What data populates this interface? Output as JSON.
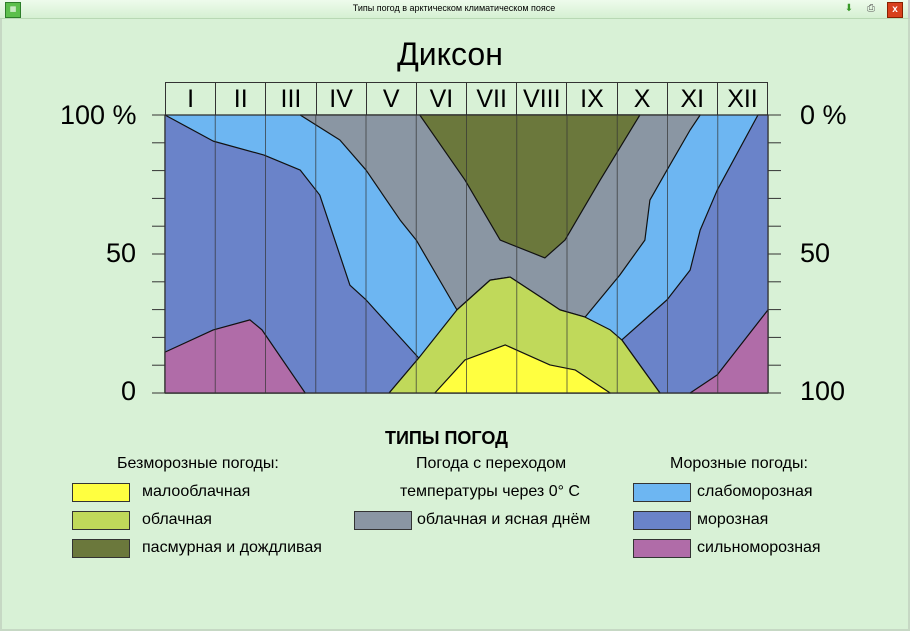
{
  "window": {
    "title": "Типы погод в арктическом климатическом поясе",
    "icons": [
      "app-icon",
      "download-icon",
      "print-icon",
      "close-icon"
    ],
    "close_label": "x"
  },
  "chart_data": {
    "type": "area",
    "title": "Диксон",
    "x_categories": [
      "I",
      "II",
      "III",
      "IV",
      "V",
      "VI",
      "VII",
      "VIII",
      "IX",
      "X",
      "XI",
      "XII"
    ],
    "left_axis": {
      "ticks": [
        "100 %",
        "50",
        "0"
      ],
      "range": [
        0,
        100
      ]
    },
    "right_axis": {
      "ticks": [
        "0 %",
        "50",
        "100"
      ],
      "range": [
        100,
        0
      ]
    },
    "x_range": [
      0,
      12
    ],
    "regions": [
      {
        "name": "слабоморозная",
        "color": "#6db6f2",
        "points": [
          [
            0,
            0
          ],
          [
            0,
            100
          ],
          [
            12,
            100
          ],
          [
            12,
            0
          ]
        ]
      },
      {
        "name": "морозная",
        "color": "#6a83c9",
        "points": [
          [
            0,
            100
          ],
          [
            0.96,
            90.6
          ],
          [
            1.97,
            85.6
          ],
          [
            2.69,
            80.2
          ],
          [
            3.08,
            71.2
          ],
          [
            3.38,
            55
          ],
          [
            3.68,
            38.8
          ],
          [
            4.0,
            33.5
          ],
          [
            5.05,
            12.6
          ],
          [
            4.46,
            0
          ],
          [
            0,
            0
          ]
        ]
      },
      {
        "name": "морозная",
        "color": "#6a83c9",
        "points": [
          [
            9.09,
            19.1
          ],
          [
            9.99,
            33.5
          ],
          [
            10.45,
            44.2
          ],
          [
            10.65,
            58.6
          ],
          [
            10.99,
            73
          ],
          [
            11.8,
            100
          ],
          [
            12,
            100
          ],
          [
            12,
            0
          ],
          [
            9.85,
            0
          ]
        ]
      },
      {
        "name": "облачная и ясная днём",
        "color": "#8a96a3",
        "points": [
          [
            2.69,
            100
          ],
          [
            10.65,
            100
          ],
          [
            10.45,
            94.6
          ],
          [
            9.99,
            80.2
          ],
          [
            9.65,
            69.4
          ],
          [
            9.55,
            55
          ],
          [
            9.05,
            42.4
          ],
          [
            8.36,
            27.3
          ],
          [
            7.86,
            29.9
          ],
          [
            7.56,
            33.5
          ],
          [
            6.87,
            41.7
          ],
          [
            6.47,
            40.6
          ],
          [
            5.81,
            29.9
          ],
          [
            5.0,
            55
          ],
          [
            4.68,
            62.2
          ],
          [
            4.0,
            80.2
          ],
          [
            3.48,
            91
          ]
        ]
      },
      {
        "name": "пасмурная и дождливая",
        "color": "#6b783c",
        "points": [
          [
            5.07,
            100
          ],
          [
            5.97,
            76.6
          ],
          [
            6.67,
            55
          ],
          [
            7.56,
            48.6
          ],
          [
            7.96,
            55
          ],
          [
            8.66,
            76.6
          ],
          [
            9.45,
            100
          ]
        ]
      },
      {
        "name": "облачная",
        "color": "#c0d95a",
        "points": [
          [
            4.46,
            0
          ],
          [
            5.05,
            12.6
          ],
          [
            5.81,
            29.9
          ],
          [
            6.47,
            40.6
          ],
          [
            6.87,
            41.7
          ],
          [
            7.56,
            33.5
          ],
          [
            7.86,
            29.9
          ],
          [
            8.36,
            27.3
          ],
          [
            8.86,
            22.7
          ],
          [
            9.09,
            19.1
          ],
          [
            9.85,
            0
          ]
        ]
      },
      {
        "name": "малооблачная",
        "color": "#ffff40",
        "points": [
          [
            5.37,
            0
          ],
          [
            5.97,
            11.9
          ],
          [
            6.77,
            17.3
          ],
          [
            7.66,
            10.1
          ],
          [
            8.16,
            8.3
          ],
          [
            8.86,
            0
          ]
        ]
      },
      {
        "name": "сильноморозная",
        "color": "#b06ca8",
        "points": [
          [
            0,
            0
          ],
          [
            0,
            14.7
          ],
          [
            0.96,
            22.7
          ],
          [
            1.69,
            26.3
          ],
          [
            1.93,
            22.7
          ],
          [
            2.79,
            0
          ]
        ]
      },
      {
        "name": "сильноморозная",
        "color": "#b06ca8",
        "points": [
          [
            10.45,
            0
          ],
          [
            10.99,
            6.5
          ],
          [
            12,
            29.9
          ],
          [
            12,
            0
          ]
        ]
      }
    ]
  },
  "legend": {
    "title": "ТИПЫ ПОГОД",
    "groups": [
      {
        "heading": "Безморозные погоды:",
        "items": [
          {
            "label": "малооблачная",
            "color": "#ffff40"
          },
          {
            "label": "облачная",
            "color": "#c0d95a"
          },
          {
            "label": "пасмурная и дождливая",
            "color": "#6b783c"
          }
        ]
      },
      {
        "heading_line1": "Погода с переходом",
        "heading_line2": "температуры через 0° С",
        "items": [
          {
            "label": "облачная и ясная днём",
            "color": "#8a96a3"
          }
        ]
      },
      {
        "heading": "Морозные погоды:",
        "items": [
          {
            "label": "слабоморозная",
            "color": "#6db6f2"
          },
          {
            "label": "морозная",
            "color": "#6a83c9"
          },
          {
            "label": "сильноморозная",
            "color": "#b06ca8"
          }
        ]
      }
    ]
  }
}
